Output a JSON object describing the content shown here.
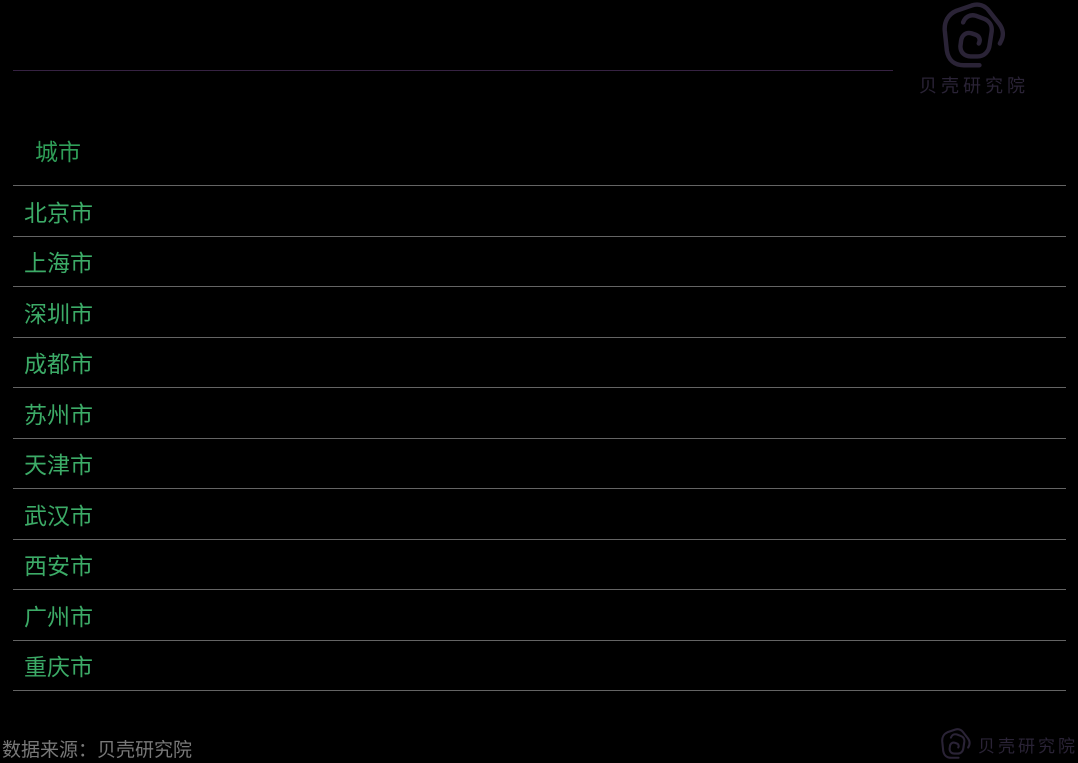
{
  "brand": {
    "name": "贝壳研究院",
    "icon": "beike-shell-icon",
    "color": "#2a2336"
  },
  "chart_data": {
    "type": "table",
    "title": "",
    "columns": [
      "城市"
    ],
    "rows": [
      "北京市",
      "上海市",
      "深圳市",
      "成都市",
      "苏州市",
      "天津市",
      "武汉市",
      "西安市",
      "广州市",
      "重庆市"
    ],
    "grid": "horizontal-dividers-only",
    "notes": "only the city-name column is visible; value columns are not rendered in the pixels"
  },
  "footer": {
    "source": "数据来源：贝壳研究院"
  },
  "colors": {
    "background": "#000000",
    "header_text": "#2f9e58",
    "row_text": "#3cab67",
    "divider": "#646464",
    "top_rule": "#362242",
    "footer_text": "#787878",
    "brand": "#2a2336"
  }
}
